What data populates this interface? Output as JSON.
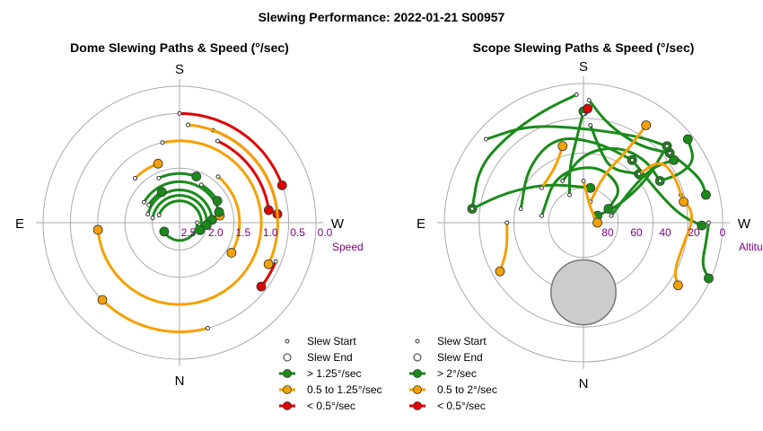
{
  "chart_data": {
    "title": "Slewing Performance: 2022-01-21 S00957",
    "colors": {
      "green": "#1a8a1a",
      "orange": "#f5a000",
      "red": "#dd0000",
      "ring": "#aaaaaa",
      "tick": "#7a007a",
      "shade": "#cccccc"
    },
    "charts": [
      {
        "type": "polar-path",
        "title": "Dome Slewing Paths & Speed (°/sec)",
        "radial_axis_label": "Speed",
        "radial_ticks": [
          "2.5",
          "2.0",
          "1.5",
          "1.0",
          "0.5",
          "0.0"
        ],
        "compass": {
          "top": "S",
          "bottom": "N",
          "left": "E",
          "right": "W"
        },
        "legend": [
          "Slew Start",
          "Slew End",
          "> 1.25°/sec",
          "0.5 to 1.25°/sec",
          "< 0.5°/sec"
        ],
        "paths": [
          {
            "speed_class": "slow",
            "r": 0.8,
            "az": [
              0,
              70
            ]
          },
          {
            "speed_class": "slow",
            "r": 0.72,
            "az": [
              20,
              85
            ]
          },
          {
            "speed_class": "slow",
            "r": 0.66,
            "az": [
              25,
              82
            ]
          },
          {
            "speed_class": "slow",
            "r": 0.76,
            "az": [
              112,
              128
            ]
          },
          {
            "speed_class": "medium",
            "r": 0.6,
            "az": [
              -12,
              265
            ]
          },
          {
            "speed_class": "medium",
            "r": 0.72,
            "az": [
              5,
              115
            ]
          },
          {
            "speed_class": "medium",
            "r": 0.44,
            "az": [
              40,
              120
            ]
          },
          {
            "speed_class": "medium",
            "r": 0.46,
            "az": [
              -45,
              -20
            ]
          },
          {
            "speed_class": "medium",
            "r": 0.8,
            "az": [
              165,
              225
            ]
          },
          {
            "speed_class": "medium",
            "r": 0.3,
            "az": [
              60,
              80
            ]
          },
          {
            "speed_class": "fast",
            "r": 0.36,
            "az": [
              -25,
              20
            ]
          },
          {
            "speed_class": "fast",
            "r": 0.3,
            "az": [
              -60,
              75
            ]
          },
          {
            "speed_class": "fast",
            "r": 0.24,
            "az": [
              -75,
              85
            ]
          },
          {
            "speed_class": "fast",
            "r": 0.2,
            "az": [
              -80,
              95
            ]
          },
          {
            "speed_class": "fast",
            "r": 0.16,
            "az": [
              -70,
              110
            ]
          },
          {
            "speed_class": "fast",
            "r": 0.13,
            "az": [
              90,
              240
            ]
          },
          {
            "speed_class": "fast",
            "r": 0.26,
            "az": [
              -60,
              -30
            ]
          },
          {
            "speed_class": "fast",
            "r": 0.32,
            "az": [
              30,
              60
            ]
          }
        ]
      },
      {
        "type": "polar-path",
        "title": "Scope Slewing Paths & Speed (°/sec)",
        "radial_axis_label": "Altitude",
        "radial_ticks": [
          "80",
          "60",
          "40",
          "20",
          "0"
        ],
        "compass": {
          "top": "S",
          "bottom": "N",
          "left": "E",
          "right": "W"
        },
        "legend": [
          "Slew Start",
          "Slew End",
          "> 2°/sec",
          "0.5 to 2°/sec",
          "< 0.5°/sec"
        ],
        "limit_zone": {
          "center_alt": 45,
          "center_az": 180,
          "radius_deg": 21
        },
        "paths": [
          {
            "speed_class": "fast",
            "pts": [
              [
                0.04,
                0.88
              ],
              [
                0.18,
                0.7
              ],
              [
                0.4,
                0.55
              ],
              [
                0.62,
                0.5
              ]
            ]
          },
          {
            "speed_class": "fast",
            "pts": [
              [
                0.62,
                0.5
              ],
              [
                0.75,
                0.4
              ],
              [
                0.85,
                0.3
              ],
              [
                0.88,
                0.2
              ]
            ]
          },
          {
            "speed_class": "fast",
            "pts": [
              [
                -0.05,
                0.92
              ],
              [
                -0.3,
                0.8
              ],
              [
                -0.55,
                0.62
              ],
              [
                -0.75,
                0.4
              ],
              [
                -0.8,
                0.1
              ]
            ]
          },
          {
            "speed_class": "fast",
            "pts": [
              [
                -0.8,
                0.1
              ],
              [
                -0.55,
                0.22
              ],
              [
                -0.25,
                0.28
              ],
              [
                0.05,
                0.25
              ]
            ]
          },
          {
            "speed_class": "fast",
            "pts": [
              [
                -0.45,
                0.1
              ],
              [
                -0.4,
                0.4
              ],
              [
                -0.2,
                0.62
              ],
              [
                0.1,
                0.58
              ],
              [
                0.35,
                0.45
              ]
            ]
          },
          {
            "speed_class": "fast",
            "pts": [
              [
                0.35,
                0.45
              ],
              [
                0.55,
                0.2
              ],
              [
                0.7,
                0.05
              ],
              [
                0.85,
                -0.02
              ]
            ]
          },
          {
            "speed_class": "fast",
            "pts": [
              [
                -0.7,
                0.6
              ],
              [
                -0.4,
                0.7
              ],
              [
                0.0,
                0.68
              ],
              [
                0.4,
                0.62
              ],
              [
                0.6,
                0.55
              ]
            ]
          },
          {
            "speed_class": "fast",
            "pts": [
              [
                0.6,
                0.55
              ],
              [
                0.45,
                0.3
              ],
              [
                0.25,
                0.12
              ],
              [
                0.1,
                0.05
              ]
            ]
          },
          {
            "speed_class": "fast",
            "pts": [
              [
                -0.3,
                0.05
              ],
              [
                -0.2,
                0.35
              ],
              [
                0.1,
                0.42
              ],
              [
                0.28,
                0.25
              ],
              [
                0.18,
                0.1
              ]
            ]
          },
          {
            "speed_class": "fast",
            "pts": [
              [
                0.05,
                0.7
              ],
              [
                0.12,
                0.52
              ],
              [
                0.2,
                0.38
              ],
              [
                0.4,
                0.35
              ]
            ]
          },
          {
            "speed_class": "fast",
            "pts": [
              [
                -0.15,
                0.3
              ],
              [
                0.0,
                0.5
              ],
              [
                0.25,
                0.55
              ],
              [
                0.45,
                0.45
              ],
              [
                0.55,
                0.3
              ]
            ]
          },
          {
            "speed_class": "fast",
            "pts": [
              [
                0.55,
                0.3
              ],
              [
                0.7,
                0.35
              ],
              [
                0.8,
                0.45
              ],
              [
                0.75,
                0.6
              ]
            ]
          },
          {
            "speed_class": "fast",
            "pts": [
              [
                0.9,
                0.0
              ],
              [
                0.88,
                -0.15
              ],
              [
                0.85,
                -0.3
              ],
              [
                0.9,
                -0.4
              ]
            ]
          },
          {
            "speed_class": "fast",
            "pts": [
              [
                -0.1,
                0.2
              ],
              [
                -0.1,
                0.4
              ],
              [
                -0.05,
                0.6
              ],
              [
                0.0,
                0.8
              ]
            ]
          },
          {
            "speed_class": "fast",
            "pts": [
              [
                0.2,
                0.05
              ],
              [
                0.35,
                0.25
              ],
              [
                0.5,
                0.4
              ],
              [
                0.65,
                0.45
              ]
            ]
          },
          {
            "speed_class": "medium",
            "pts": [
              [
                0.7,
                0.2
              ],
              [
                0.8,
                0.05
              ],
              [
                0.72,
                -0.15
              ],
              [
                0.65,
                -0.35
              ],
              [
                0.68,
                -0.45
              ]
            ]
          },
          {
            "speed_class": "medium",
            "pts": [
              [
                -0.55,
                0.0
              ],
              [
                -0.55,
                -0.2
              ],
              [
                -0.6,
                -0.35
              ]
            ]
          },
          {
            "speed_class": "medium",
            "pts": [
              [
                0.05,
                0.15
              ],
              [
                0.15,
                0.35
              ],
              [
                0.3,
                0.5
              ],
              [
                0.45,
                0.7
              ]
            ]
          },
          {
            "speed_class": "medium",
            "pts": [
              [
                -0.3,
                0.25
              ],
              [
                -0.2,
                0.4
              ],
              [
                -0.15,
                0.55
              ]
            ]
          },
          {
            "speed_class": "medium",
            "pts": [
              [
                0.4,
                0.35
              ],
              [
                0.55,
                0.45
              ],
              [
                0.65,
                0.35
              ],
              [
                0.72,
                0.15
              ]
            ]
          },
          {
            "speed_class": "medium",
            "pts": [
              [
                0.0,
                0.3
              ],
              [
                0.05,
                0.1
              ],
              [
                0.1,
                0.0
              ]
            ]
          },
          {
            "speed_class": "slow",
            "pts": [
              [
                0.0,
                0.78
              ],
              [
                0.03,
                0.82
              ]
            ]
          }
        ]
      }
    ]
  }
}
